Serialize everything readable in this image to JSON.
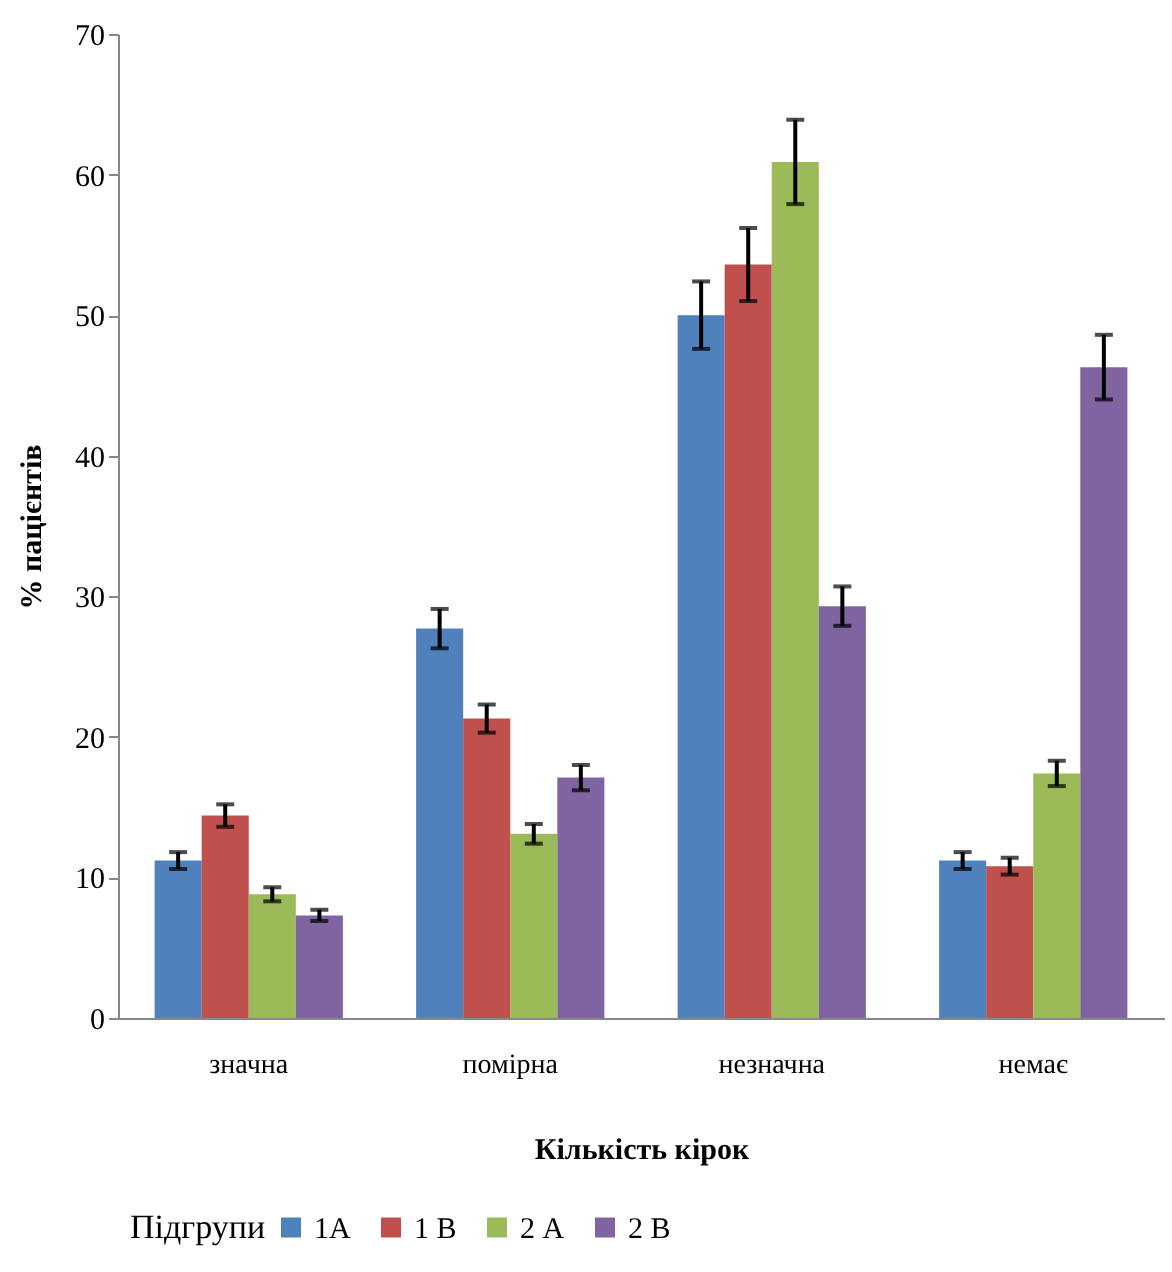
{
  "chart_data": {
    "type": "bar",
    "xlabel": "Кількість кірок",
    "ylabel": "% пацієнтів",
    "legend_title": "Підгрупи",
    "categories": [
      "значна",
      "помірна",
      "незначна",
      "немає"
    ],
    "series": [
      {
        "name": "1А",
        "color": "#4f81bd",
        "values": [
          11.2,
          27.7,
          50.0,
          11.2
        ],
        "errors": [
          0.6,
          1.4,
          2.4,
          0.6
        ]
      },
      {
        "name": "1 В",
        "color": "#c0504d",
        "values": [
          14.4,
          21.3,
          53.6,
          10.8
        ],
        "errors": [
          0.8,
          1.0,
          2.6,
          0.6
        ]
      },
      {
        "name": "2 А",
        "color": "#9bbb59",
        "values": [
          8.8,
          13.1,
          60.9,
          17.4
        ],
        "errors": [
          0.5,
          0.7,
          3.0,
          0.9
        ]
      },
      {
        "name": "2 В",
        "color": "#8064a2",
        "values": [
          7.3,
          17.1,
          29.3,
          46.3
        ],
        "errors": [
          0.4,
          0.9,
          1.4,
          2.3
        ]
      }
    ],
    "ylim": [
      0,
      70
    ],
    "yticks": [
      0,
      10,
      20,
      30,
      40,
      50,
      60,
      70
    ],
    "grid": false,
    "legend": "bottom"
  }
}
